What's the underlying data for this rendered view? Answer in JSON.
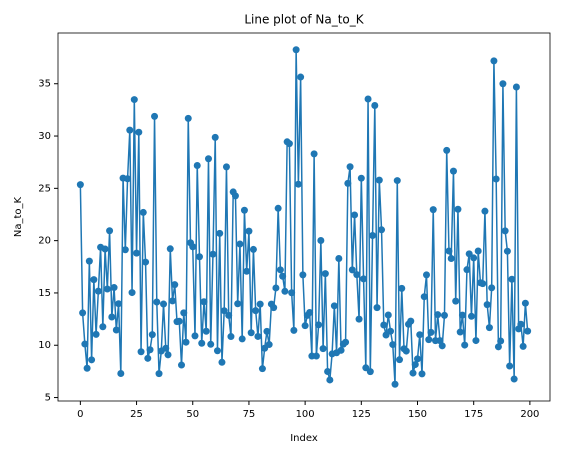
{
  "chart_data": {
    "type": "line",
    "title": "Line plot of Na_to_K",
    "x_label": "Index",
    "y_label": "Na_to_K",
    "color": "#1f77b4",
    "marker": "o",
    "grid": false,
    "xlim": [
      -9.95,
      208.95
    ],
    "xticks": [
      0,
      25,
      50,
      75,
      100,
      125,
      150,
      175,
      200
    ],
    "ylim": [
      4.67,
      39.85
    ],
    "yticks": [
      5,
      10,
      15,
      20,
      25,
      30,
      35
    ],
    "values": [
      25.355,
      13.093,
      10.114,
      7.798,
      18.043,
      8.607,
      16.275,
      11.037,
      15.171,
      19.368,
      11.767,
      19.199,
      15.376,
      20.942,
      12.703,
      15.516,
      11.455,
      13.972,
      7.298,
      25.974,
      19.128,
      25.917,
      30.568,
      15.036,
      33.486,
      18.809,
      30.366,
      9.381,
      22.697,
      17.951,
      8.75,
      9.567,
      11.014,
      31.876,
      14.133,
      7.285,
      9.445,
      13.938,
      9.709,
      9.084,
      19.221,
      14.239,
      15.79,
      12.26,
      12.295,
      8.107,
      13.091,
      10.291,
      31.686,
      19.796,
      19.416,
      10.898,
      27.183,
      18.457,
      10.189,
      14.16,
      11.34,
      27.826,
      10.091,
      18.703,
      29.875,
      9.475,
      20.693,
      8.37,
      13.303,
      27.05,
      12.856,
      10.832,
      24.658,
      24.276,
      13.967,
      19.675,
      10.605,
      22.905,
      17.069,
      20.909,
      11.198,
      19.161,
      13.313,
      10.84,
      13.934,
      7.761,
      9.712,
      11.326,
      10.067,
      13.935,
      13.597,
      15.478,
      23.091,
      17.211,
      16.594,
      15.156,
      29.45,
      29.271,
      15.015,
      11.424,
      38.247,
      25.395,
      35.639,
      16.725,
      11.871,
      12.854,
      13.127,
      8.966,
      28.294,
      8.968,
      11.953,
      20.013,
      9.677,
      16.85,
      7.49,
      6.683,
      9.17,
      13.769,
      9.281,
      18.295,
      9.514,
      10.103,
      10.292,
      25.475,
      27.064,
      17.206,
      22.456,
      16.753,
      12.495,
      25.969,
      16.347,
      7.845,
      33.542,
      7.477,
      20.489,
      32.922,
      13.598,
      25.786,
      21.036,
      11.939,
      10.977,
      12.894,
      11.343,
      10.065,
      6.269,
      25.741,
      8.621,
      15.436,
      9.664,
      9.443,
      12.006,
      12.307,
      7.34,
      8.151,
      8.7,
      11.009,
      7.261,
      14.642,
      16.724,
      10.537,
      11.227,
      22.963,
      10.444,
      12.923,
      10.443,
      9.945,
      12.859,
      28.632,
      19.007,
      18.295,
      26.645,
      14.216,
      23.003,
      11.262,
      12.879,
      10.017,
      17.225,
      18.739,
      12.766,
      18.348,
      10.446,
      19.011,
      15.969,
      15.891,
      22.818,
      13.884,
      11.686,
      15.49,
      37.188,
      25.893,
      9.849,
      10.403,
      34.997,
      20.932,
      18.991,
      8.011,
      16.31,
      6.769,
      34.686,
      11.567,
      12.006,
      9.894,
      14.02,
      11.349
    ]
  }
}
